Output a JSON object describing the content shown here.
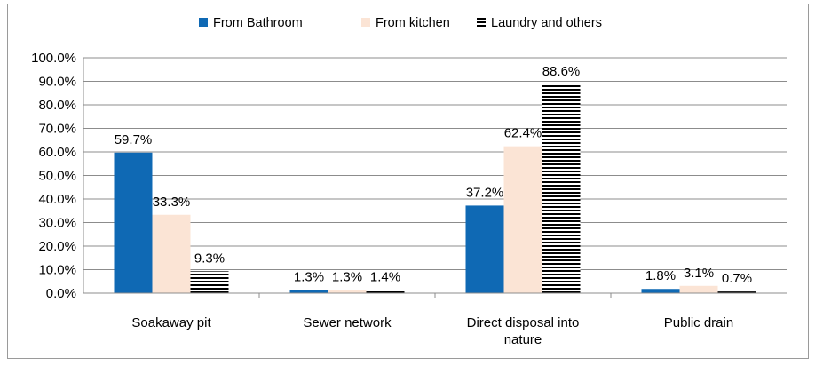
{
  "chart_data": {
    "type": "bar",
    "categories": [
      [
        "Soakaway pit"
      ],
      [
        "Sewer network"
      ],
      [
        "Direct disposal into",
        "nature"
      ],
      [
        "Public drain"
      ]
    ],
    "series": [
      {
        "name": "From Bathroom",
        "color": "#0f69b4",
        "pattern": "solid",
        "values": [
          59.7,
          1.3,
          37.2,
          1.8
        ],
        "labels": [
          "59.7%",
          "1.3%",
          "37.2%",
          "1.8%"
        ]
      },
      {
        "name": "From kitchen",
        "color": "#fbe4d5",
        "pattern": "solid",
        "values": [
          33.3,
          1.3,
          62.4,
          3.1
        ],
        "labels": [
          "33.3%",
          "1.3%",
          "62.4%",
          "3.1%"
        ]
      },
      {
        "name": "Laundry and others",
        "color": "#000000",
        "pattern": "horizontal-stripes",
        "values": [
          9.3,
          1.4,
          88.6,
          0.7
        ],
        "labels": [
          "9.3%",
          "1.4%",
          "88.6%",
          "0.7%"
        ]
      }
    ],
    "y_ticks": [
      "0.0%",
      "10.0%",
      "20.0%",
      "30.0%",
      "40.0%",
      "50.0%",
      "60.0%",
      "70.0%",
      "80.0%",
      "90.0%",
      "100.0%"
    ],
    "ylim": [
      0,
      100
    ],
    "grid": true,
    "legend_position": "top-center"
  }
}
